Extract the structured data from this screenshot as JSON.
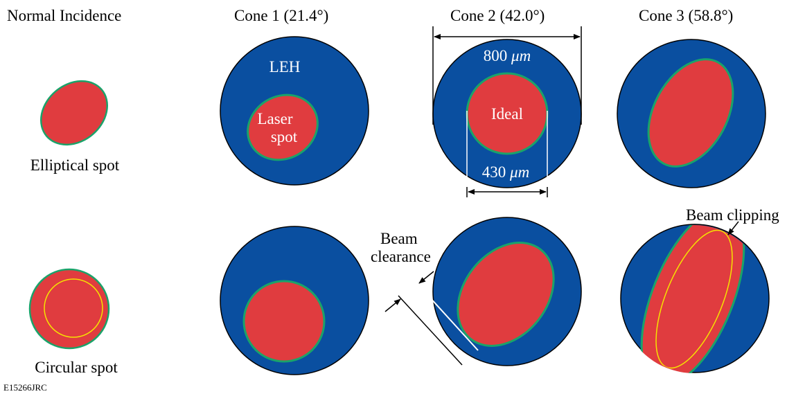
{
  "headers": {
    "normal": "Normal Incidence",
    "cone1": "Cone 1 (21.4°)",
    "cone2": "Cone 2 (42.0°)",
    "cone3": "Cone 3 (58.8°)"
  },
  "labels": {
    "elliptical_spot": "Elliptical spot",
    "circular_spot": "Circular spot",
    "leh": "LEH",
    "laser_spot_line1": "Laser",
    "laser_spot_line2": "spot",
    "ideal": "Ideal",
    "dim_800_value": "800 ",
    "dim_800_unit": "μm",
    "dim_430_value": "430 ",
    "dim_430_unit": "μm",
    "beam_clearance_line1": "Beam",
    "beam_clearance_line2": "clearance",
    "beam_clipping": "Beam clipping",
    "figure_id": "E15266JRC"
  },
  "colors": {
    "hole_blue": "#0a4fa0",
    "spot_red": "#e03c3f",
    "spot_edge_green": "#1aa36a",
    "inner_ring_yellow": "#f5e400",
    "line_black": "#000000",
    "line_white": "#ffffff"
  }
}
